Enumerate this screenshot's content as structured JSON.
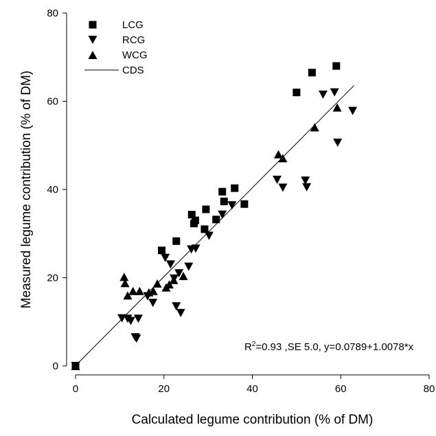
{
  "chart_data": {
    "type": "scatter",
    "xlabel": "Calculated legume contribution (% of DM)",
    "ylabel": "Measured legume contribution (% of DM)",
    "xlim": [
      0,
      80
    ],
    "ylim": [
      0,
      80
    ],
    "xticks": [
      "0",
      "20",
      "40",
      "60",
      "80"
    ],
    "yticks": [
      "0",
      "20",
      "40",
      "60",
      "80"
    ],
    "grid": false,
    "legend_position": "top-left",
    "annotation": {
      "r_label": "R",
      "r_sup": "2",
      "rest": "=0.93 ,SE 5.0, y=0.0789+1.0078*x",
      "x": 46,
      "y": 0
    },
    "series": [
      {
        "name": "LCG",
        "marker": "square",
        "points": [
          [
            0,
            0
          ],
          [
            19.5,
            26.2
          ],
          [
            22.8,
            28.3
          ],
          [
            26.3,
            34.3
          ],
          [
            26.8,
            32.3
          ],
          [
            27.1,
            33.0
          ],
          [
            29.2,
            31.0
          ],
          [
            29.5,
            35.5
          ],
          [
            31.8,
            33.2
          ],
          [
            33.2,
            39.5
          ],
          [
            33.6,
            37.3
          ],
          [
            36.0,
            40.3
          ],
          [
            38.2,
            36.7
          ],
          [
            50.0,
            62.0
          ],
          [
            53.5,
            66.5
          ],
          [
            59.0,
            68.0
          ]
        ]
      },
      {
        "name": "RCG",
        "marker": "triangle-down",
        "points": [
          [
            0,
            0
          ],
          [
            10.5,
            10.8
          ],
          [
            11.8,
            10.7
          ],
          [
            12.5,
            10.2
          ],
          [
            13.5,
            6.5
          ],
          [
            14.2,
            10.7
          ],
          [
            13.8,
            6.2
          ],
          [
            16.3,
            15.8
          ],
          [
            17.5,
            14.3
          ],
          [
            20.3,
            24.5
          ],
          [
            21.5,
            23.0
          ],
          [
            22.3,
            19.8
          ],
          [
            22.8,
            13.5
          ],
          [
            23.4,
            21.0
          ],
          [
            23.8,
            12.0
          ],
          [
            25.6,
            22.5
          ],
          [
            26.2,
            26.4
          ],
          [
            27.2,
            26.6
          ],
          [
            30.2,
            29.5
          ],
          [
            33.2,
            34.3
          ],
          [
            35.4,
            36.4
          ],
          [
            45.6,
            42.2
          ],
          [
            46.9,
            40.4
          ],
          [
            52.0,
            42.0
          ],
          [
            52.3,
            40.5
          ],
          [
            56.0,
            61.5
          ],
          [
            58.6,
            62.0
          ],
          [
            59.3,
            50.6
          ],
          [
            62.7,
            57.8
          ]
        ]
      },
      {
        "name": "WCG",
        "marker": "triangle-up",
        "points": [
          [
            0,
            0
          ],
          [
            11.0,
            20.2
          ],
          [
            11.2,
            18.8
          ],
          [
            11.8,
            16.0
          ],
          [
            13.0,
            17.0
          ],
          [
            14.5,
            17.0
          ],
          [
            16.6,
            16.7
          ],
          [
            17.6,
            17.0
          ],
          [
            18.5,
            18.7
          ],
          [
            20.5,
            17.8
          ],
          [
            21.2,
            18.5
          ],
          [
            22.2,
            19.5
          ],
          [
            24.4,
            20.4
          ],
          [
            45.9,
            48.0
          ],
          [
            46.9,
            47.1
          ],
          [
            54.1,
            54.1
          ],
          [
            59.2,
            58.6
          ]
        ]
      },
      {
        "name": "CDS",
        "marker": "line",
        "intercept": 0.0789,
        "slope": 1.0078,
        "x_range": [
          0,
          63
        ]
      }
    ]
  }
}
